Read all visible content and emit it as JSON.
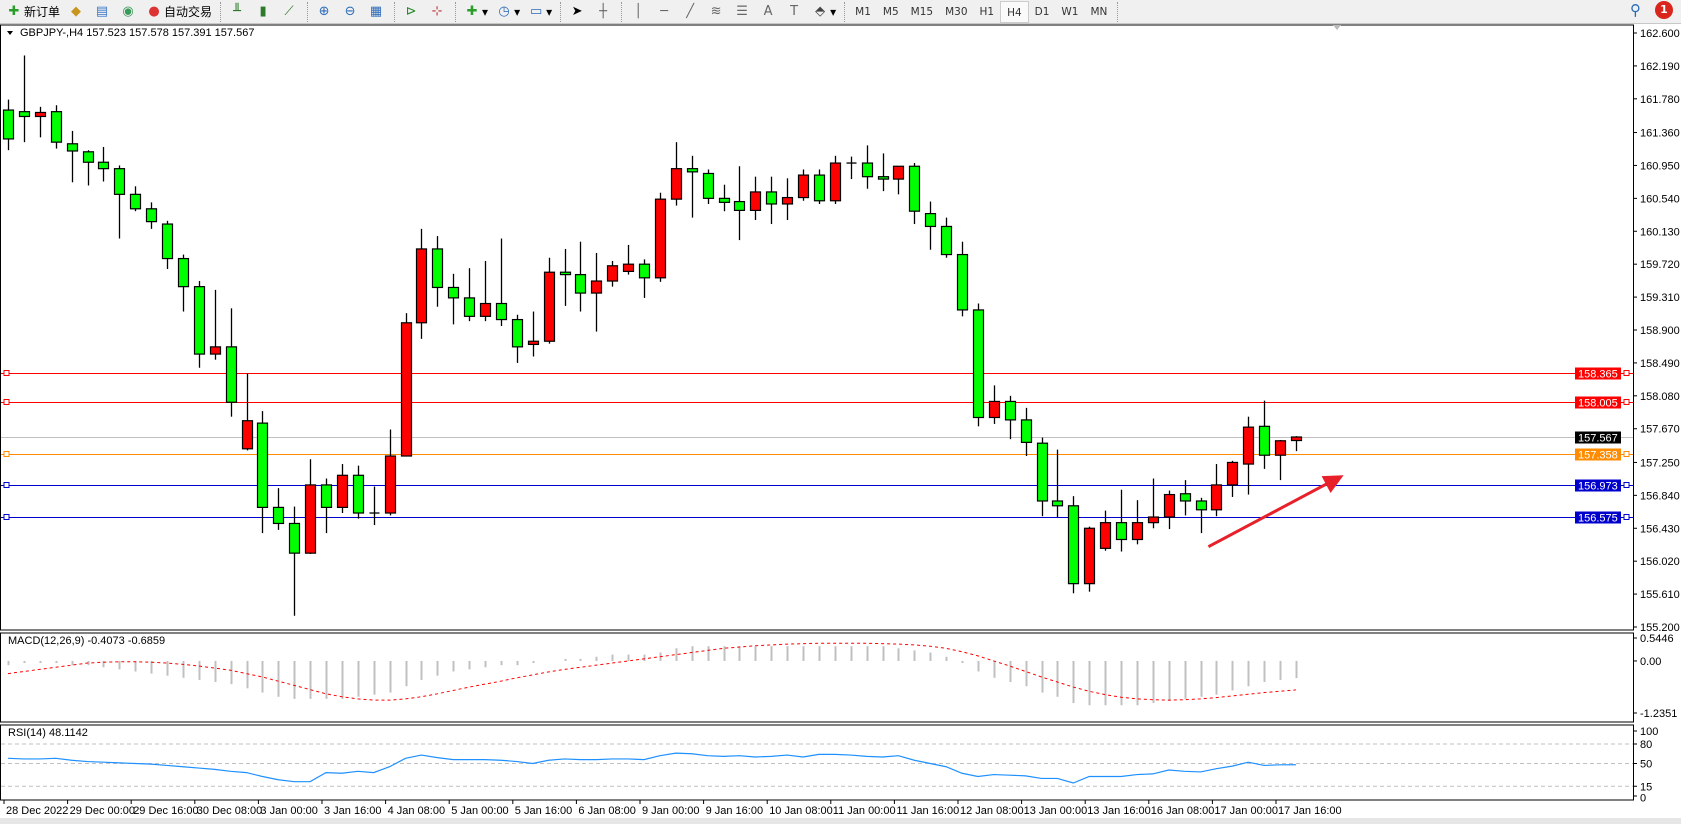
{
  "toolbar": {
    "new_order": "新订单",
    "auto_trading": "自动交易",
    "icons": [
      "new-order-icon",
      "gold-icon",
      "history-icon",
      "signal-icon",
      "auto-trading-icon",
      "bar-chart-icon",
      "candle-chart-icon",
      "line-chart-icon",
      "zoom-in-icon",
      "zoom-out-icon",
      "tile-windows-icon",
      "auto-scroll-icon",
      "chart-shift-icon",
      "indicators-icon",
      "periods-icon",
      "templates-icon",
      "cursor-icon",
      "crosshair-icon",
      "vertical-line-icon",
      "horizontal-line-icon",
      "trendline-icon",
      "fibonacci-icon",
      "fibo-fan-icon",
      "text-icon",
      "label-icon",
      "arrows-icon"
    ],
    "timeframes": [
      "M1",
      "M5",
      "M15",
      "M30",
      "H1",
      "H4",
      "D1",
      "W1",
      "MN"
    ],
    "active_timeframe": "H4",
    "notification_count": "1"
  },
  "chart": {
    "header": "GBPJPY-,H4  157.523 157.578 157.391 157.567",
    "colors": {
      "bull": "#ff0000",
      "bear": "#00ff00",
      "background": "#ffffff",
      "grid": "#c0c0c0"
    },
    "price_ticks": [
      "162.600",
      "162.190",
      "161.780",
      "161.360",
      "160.950",
      "160.540",
      "160.130",
      "159.720",
      "159.310",
      "158.900",
      "158.490",
      "158.080",
      "157.670",
      "157.250",
      "156.840",
      "156.430",
      "156.020",
      "155.610",
      "155.200"
    ],
    "price_range": [
      155.2,
      162.6
    ],
    "candles": [
      [
        161.64,
        161.77,
        161.14,
        161.28
      ],
      [
        161.62,
        162.32,
        161.24,
        161.56
      ],
      [
        161.56,
        161.68,
        161.3,
        161.61
      ],
      [
        161.62,
        161.7,
        161.16,
        161.24
      ],
      [
        161.22,
        161.38,
        160.74,
        161.13
      ],
      [
        161.12,
        161.14,
        160.7,
        160.99
      ],
      [
        160.99,
        161.18,
        160.75,
        160.91
      ],
      [
        160.91,
        160.95,
        160.04,
        160.59
      ],
      [
        160.59,
        160.69,
        160.38,
        160.41
      ],
      [
        160.41,
        160.49,
        160.16,
        160.25
      ],
      [
        160.22,
        160.26,
        159.66,
        159.79
      ],
      [
        159.79,
        159.84,
        159.13,
        159.44
      ],
      [
        159.44,
        159.51,
        158.43,
        158.6
      ],
      [
        158.6,
        159.4,
        158.53,
        158.69
      ],
      [
        158.69,
        159.17,
        157.82,
        158.0
      ],
      [
        157.42,
        158.36,
        157.4,
        157.77
      ],
      [
        157.74,
        157.89,
        156.37,
        156.69
      ],
      [
        156.69,
        156.93,
        156.41,
        156.49
      ],
      [
        156.49,
        156.7,
        155.34,
        156.12
      ],
      [
        156.12,
        157.29,
        156.11,
        156.97
      ],
      [
        156.97,
        157.05,
        156.37,
        156.69
      ],
      [
        156.69,
        157.23,
        156.62,
        157.09
      ],
      [
        157.09,
        157.21,
        156.55,
        156.62
      ],
      [
        156.62,
        156.95,
        156.47,
        156.62
      ],
      [
        156.62,
        157.66,
        156.59,
        157.33
      ],
      [
        157.33,
        159.11,
        157.33,
        158.99
      ],
      [
        158.99,
        160.16,
        158.79,
        159.91
      ],
      [
        159.91,
        160.07,
        159.19,
        159.43
      ],
      [
        159.43,
        159.6,
        158.97,
        159.3
      ],
      [
        159.3,
        159.67,
        159.01,
        159.07
      ],
      [
        159.07,
        159.76,
        159.01,
        159.23
      ],
      [
        159.23,
        160.04,
        158.95,
        159.03
      ],
      [
        159.03,
        159.09,
        158.49,
        158.69
      ],
      [
        158.72,
        159.13,
        158.57,
        158.76
      ],
      [
        158.76,
        159.8,
        158.73,
        159.62
      ],
      [
        159.62,
        159.91,
        159.2,
        159.59
      ],
      [
        159.59,
        160.0,
        159.13,
        159.36
      ],
      [
        159.36,
        159.86,
        158.88,
        159.51
      ],
      [
        159.51,
        159.76,
        159.44,
        159.7
      ],
      [
        159.63,
        159.96,
        159.59,
        159.72
      ],
      [
        159.72,
        159.78,
        159.3,
        159.55
      ],
      [
        159.55,
        160.61,
        159.5,
        160.53
      ],
      [
        160.53,
        161.24,
        160.45,
        160.91
      ],
      [
        160.91,
        161.07,
        160.3,
        160.87
      ],
      [
        160.85,
        160.9,
        160.47,
        160.54
      ],
      [
        160.54,
        160.71,
        160.38,
        160.49
      ],
      [
        160.5,
        160.94,
        160.02,
        160.39
      ],
      [
        160.39,
        160.81,
        160.27,
        160.62
      ],
      [
        160.62,
        160.81,
        160.22,
        160.47
      ],
      [
        160.47,
        160.79,
        160.27,
        160.55
      ],
      [
        160.55,
        160.9,
        160.51,
        160.83
      ],
      [
        160.83,
        160.9,
        160.47,
        160.51
      ],
      [
        160.51,
        161.07,
        160.47,
        160.98
      ],
      [
        160.98,
        161.06,
        160.78,
        160.98
      ],
      [
        160.98,
        161.2,
        160.66,
        160.81
      ],
      [
        160.81,
        161.1,
        160.63,
        160.78
      ],
      [
        160.78,
        160.94,
        160.59,
        160.94
      ],
      [
        160.94,
        160.98,
        160.22,
        160.38
      ],
      [
        160.35,
        160.5,
        159.9,
        160.19
      ],
      [
        160.19,
        160.3,
        159.8,
        159.84
      ],
      [
        159.84,
        160.0,
        159.07,
        159.15
      ],
      [
        159.15,
        159.23,
        157.7,
        157.81
      ],
      [
        157.81,
        158.21,
        157.73,
        158.01
      ],
      [
        158.01,
        158.08,
        157.54,
        157.78
      ],
      [
        157.78,
        157.93,
        157.33,
        157.5
      ],
      [
        157.49,
        157.56,
        156.58,
        156.77
      ],
      [
        156.77,
        157.41,
        156.57,
        156.71
      ],
      [
        156.71,
        156.83,
        155.62,
        155.74
      ],
      [
        155.74,
        156.45,
        155.64,
        156.43
      ],
      [
        156.18,
        156.65,
        156.15,
        156.5
      ],
      [
        156.5,
        156.91,
        156.14,
        156.29
      ],
      [
        156.29,
        156.78,
        156.23,
        156.5
      ],
      [
        156.5,
        157.05,
        156.43,
        156.57
      ],
      [
        156.57,
        156.9,
        156.42,
        156.85
      ],
      [
        156.86,
        157.03,
        156.59,
        156.77
      ],
      [
        156.77,
        156.81,
        156.37,
        156.66
      ],
      [
        156.66,
        157.23,
        156.58,
        156.97
      ],
      [
        156.97,
        157.27,
        156.82,
        157.25
      ],
      [
        157.23,
        157.82,
        156.85,
        157.69
      ],
      [
        157.7,
        158.02,
        157.17,
        157.34
      ],
      [
        157.34,
        157.53,
        157.03,
        157.52
      ],
      [
        157.523,
        157.578,
        157.391,
        157.567
      ]
    ],
    "hlines": [
      {
        "price": "158.365",
        "color": "#ff0000"
      },
      {
        "price": "158.005",
        "color": "#ff0000"
      },
      {
        "price": "157.567",
        "color": "#c0c0c0",
        "label_bg": "#000000",
        "bid": true
      },
      {
        "price": "157.358",
        "color": "#ff8c00"
      },
      {
        "price": "156.973",
        "color": "#0000cc"
      },
      {
        "price": "156.575",
        "color": "#0000cc"
      }
    ],
    "arrow": {
      "from": [
        76.5,
        156.2
      ],
      "to": [
        85,
        157.09
      ],
      "color": "#e8202a"
    },
    "time_labels": [
      "28 Dec 2022",
      "29 Dec 00:00",
      "29 Dec 16:00",
      "30 Dec 08:00",
      "3 Jan 00:00",
      "3 Jan 16:00",
      "4 Jan 08:00",
      "5 Jan 00:00",
      "5 Jan 16:00",
      "6 Jan 08:00",
      "9 Jan 00:00",
      "9 Jan 16:00",
      "10 Jan 08:00",
      "11 Jan 00:00",
      "11 Jan 16:00",
      "12 Jan 08:00",
      "13 Jan 00:00",
      "13 Jan 16:00",
      "16 Jan 08:00",
      "17 Jan 00:00",
      "17 Jan 16:00"
    ]
  },
  "macd": {
    "label": "MACD(12,26,9) -0.4073 -0.6859",
    "ticks": [
      "0.5446",
      "0.00",
      "-1.2351"
    ],
    "range": [
      -1.2351,
      0.5446
    ],
    "histogram": [
      -0.1,
      -0.05,
      -0.05,
      -0.05,
      -0.1,
      -0.1,
      -0.15,
      -0.2,
      -0.25,
      -0.3,
      -0.35,
      -0.4,
      -0.45,
      -0.5,
      -0.55,
      -0.65,
      -0.75,
      -0.85,
      -0.9,
      -0.9,
      -0.9,
      -0.9,
      -0.85,
      -0.8,
      -0.75,
      -0.6,
      -0.45,
      -0.35,
      -0.25,
      -0.2,
      -0.15,
      -0.1,
      -0.1,
      -0.05,
      0,
      0.05,
      0.05,
      0.1,
      0.15,
      0.15,
      0.15,
      0.2,
      0.3,
      0.35,
      0.35,
      0.35,
      0.35,
      0.35,
      0.35,
      0.35,
      0.35,
      0.35,
      0.35,
      0.35,
      0.35,
      0.35,
      0.3,
      0.25,
      0.2,
      0.1,
      -0.05,
      -0.25,
      -0.4,
      -0.5,
      -0.6,
      -0.75,
      -0.85,
      -1.0,
      -1.05,
      -1.05,
      -1.05,
      -1.05,
      -1.0,
      -0.95,
      -0.9,
      -0.85,
      -0.8,
      -0.7,
      -0.6,
      -0.5,
      -0.45,
      -0.4073
    ],
    "signal": [
      -0.3,
      -0.25,
      -0.2,
      -0.15,
      -0.1,
      -0.05,
      -0.03,
      -0.02,
      -0.02,
      -0.03,
      -0.05,
      -0.08,
      -0.12,
      -0.17,
      -0.22,
      -0.3,
      -0.38,
      -0.48,
      -0.58,
      -0.68,
      -0.78,
      -0.85,
      -0.9,
      -0.93,
      -0.93,
      -0.9,
      -0.85,
      -0.78,
      -0.7,
      -0.62,
      -0.55,
      -0.48,
      -0.4,
      -0.33,
      -0.26,
      -0.2,
      -0.15,
      -0.1,
      -0.05,
      0,
      0.05,
      0.1,
      0.15,
      0.2,
      0.25,
      0.3,
      0.33,
      0.36,
      0.38,
      0.4,
      0.41,
      0.42,
      0.42,
      0.42,
      0.42,
      0.41,
      0.4,
      0.38,
      0.35,
      0.3,
      0.22,
      0.12,
      0,
      -0.12,
      -0.25,
      -0.38,
      -0.5,
      -0.62,
      -0.72,
      -0.8,
      -0.86,
      -0.9,
      -0.92,
      -0.93,
      -0.92,
      -0.9,
      -0.87,
      -0.83,
      -0.79,
      -0.75,
      -0.72,
      -0.6859
    ],
    "histogram_color": "#c0c0c0",
    "signal_color": "#ff0000"
  },
  "rsi": {
    "label": "RSI(14) 48.1142",
    "ticks": [
      "100",
      "80",
      "50",
      "15",
      "0"
    ],
    "levels": [
      80,
      50,
      15
    ],
    "color": "#1e90ff",
    "values": [
      58,
      57,
      57,
      58,
      55,
      53,
      52,
      51,
      50,
      49,
      47,
      45,
      43,
      41,
      38,
      36,
      30,
      25,
      22,
      22,
      36,
      35,
      38,
      36,
      45,
      58,
      63,
      59,
      56,
      56,
      56,
      55,
      53,
      50,
      55,
      57,
      56,
      56,
      57,
      57,
      56,
      62,
      66,
      65,
      62,
      61,
      62,
      60,
      61,
      63,
      60,
      64,
      64,
      63,
      61,
      60,
      62,
      55,
      50,
      45,
      35,
      30,
      33,
      32,
      31,
      27,
      27,
      20,
      30,
      30,
      30,
      33,
      34,
      40,
      38,
      37,
      42,
      46,
      52,
      47,
      48,
      48.1142
    ]
  }
}
